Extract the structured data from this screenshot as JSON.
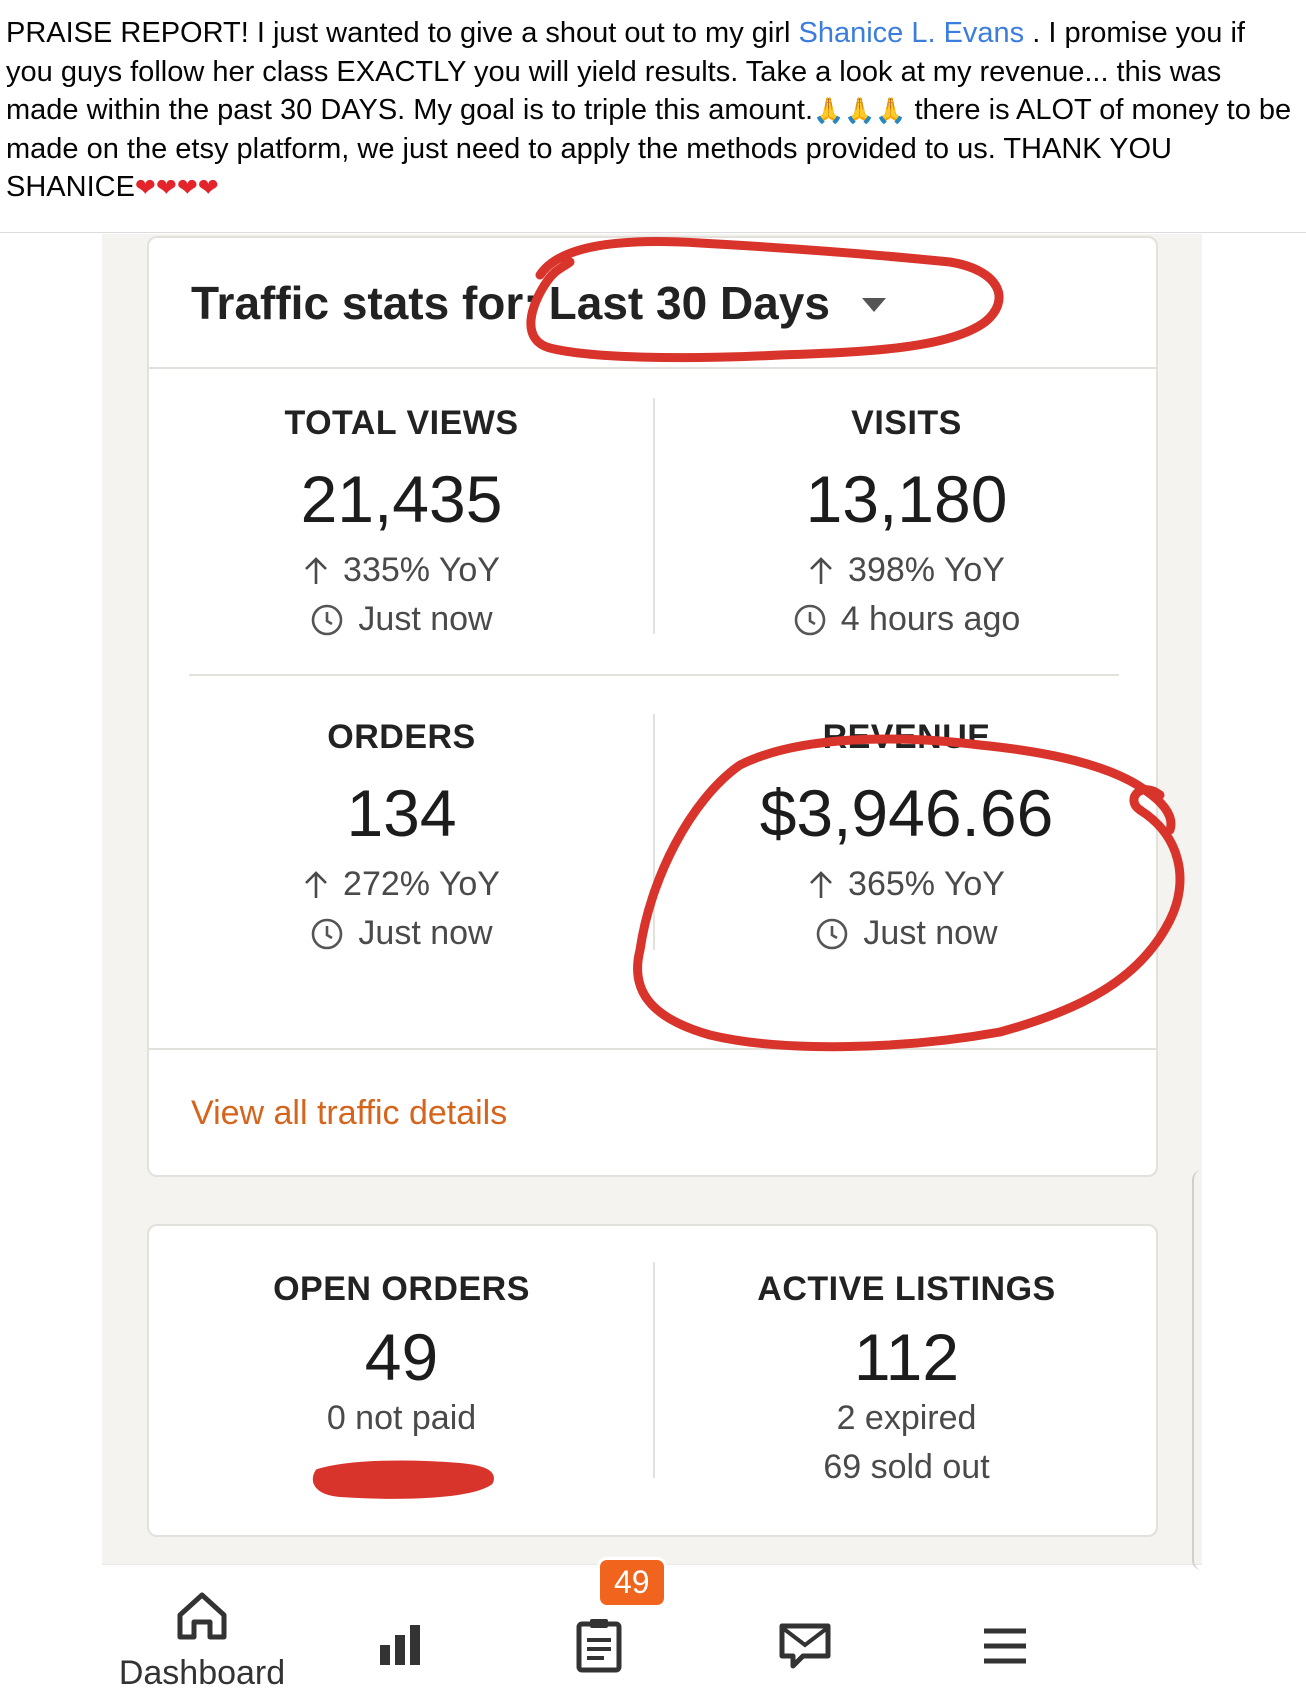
{
  "post": {
    "text_1": "PRAISE REPORT!  I just wanted to give a shout out to my girl ",
    "mention": "Shanice L. Evans",
    "text_2": " . I promise you if you guys follow her class EXACTLY you will yield results. Take a look at my revenue... this was made within the past 30 DAYS.  My goal is to  triple this amount.",
    "text_3": " there is ALOT of money to be made on the etsy platform, we just need to apply the methods provided to us. THANK YOU SHANICE",
    "pray_emojis": "🙏🙏🙏",
    "heart_emojis": "❤❤❤❤",
    "colors": {
      "mention": "#3b7ddd",
      "heart": "#e3242b"
    }
  },
  "traffic": {
    "heading": "Traffic stats for:",
    "range": "Last 30 Days",
    "stats": [
      {
        "label": "TOTAL VIEWS",
        "value": "21,435",
        "change": "335% YoY",
        "updated": "Just now"
      },
      {
        "label": "VISITS",
        "value": "13,180",
        "change": "398% YoY",
        "updated": "4 hours ago"
      },
      {
        "label": "ORDERS",
        "value": "134",
        "change": "272% YoY",
        "updated": "Just now"
      },
      {
        "label": "REVENUE",
        "value": "$3,946.66",
        "change": "365% YoY",
        "updated": "Just now"
      }
    ],
    "view_all_label": "View all traffic details",
    "link_color": "#d5641c"
  },
  "orders": {
    "open_orders": {
      "label": "OPEN ORDERS",
      "value": "49",
      "sub": "0 not paid"
    },
    "active_listings": {
      "label": "ACTIVE LISTINGS",
      "value": "112",
      "sub_1": "2 expired",
      "sub_2": "69 sold out"
    }
  },
  "nav": {
    "dashboard_label": "Dashboard",
    "orders_badge": "49",
    "icons": [
      "home-icon",
      "stats-icon",
      "orders-icon",
      "messages-icon",
      "menu-icon"
    ],
    "accent": "#f1641e"
  },
  "annotation_color": "#d9342b"
}
